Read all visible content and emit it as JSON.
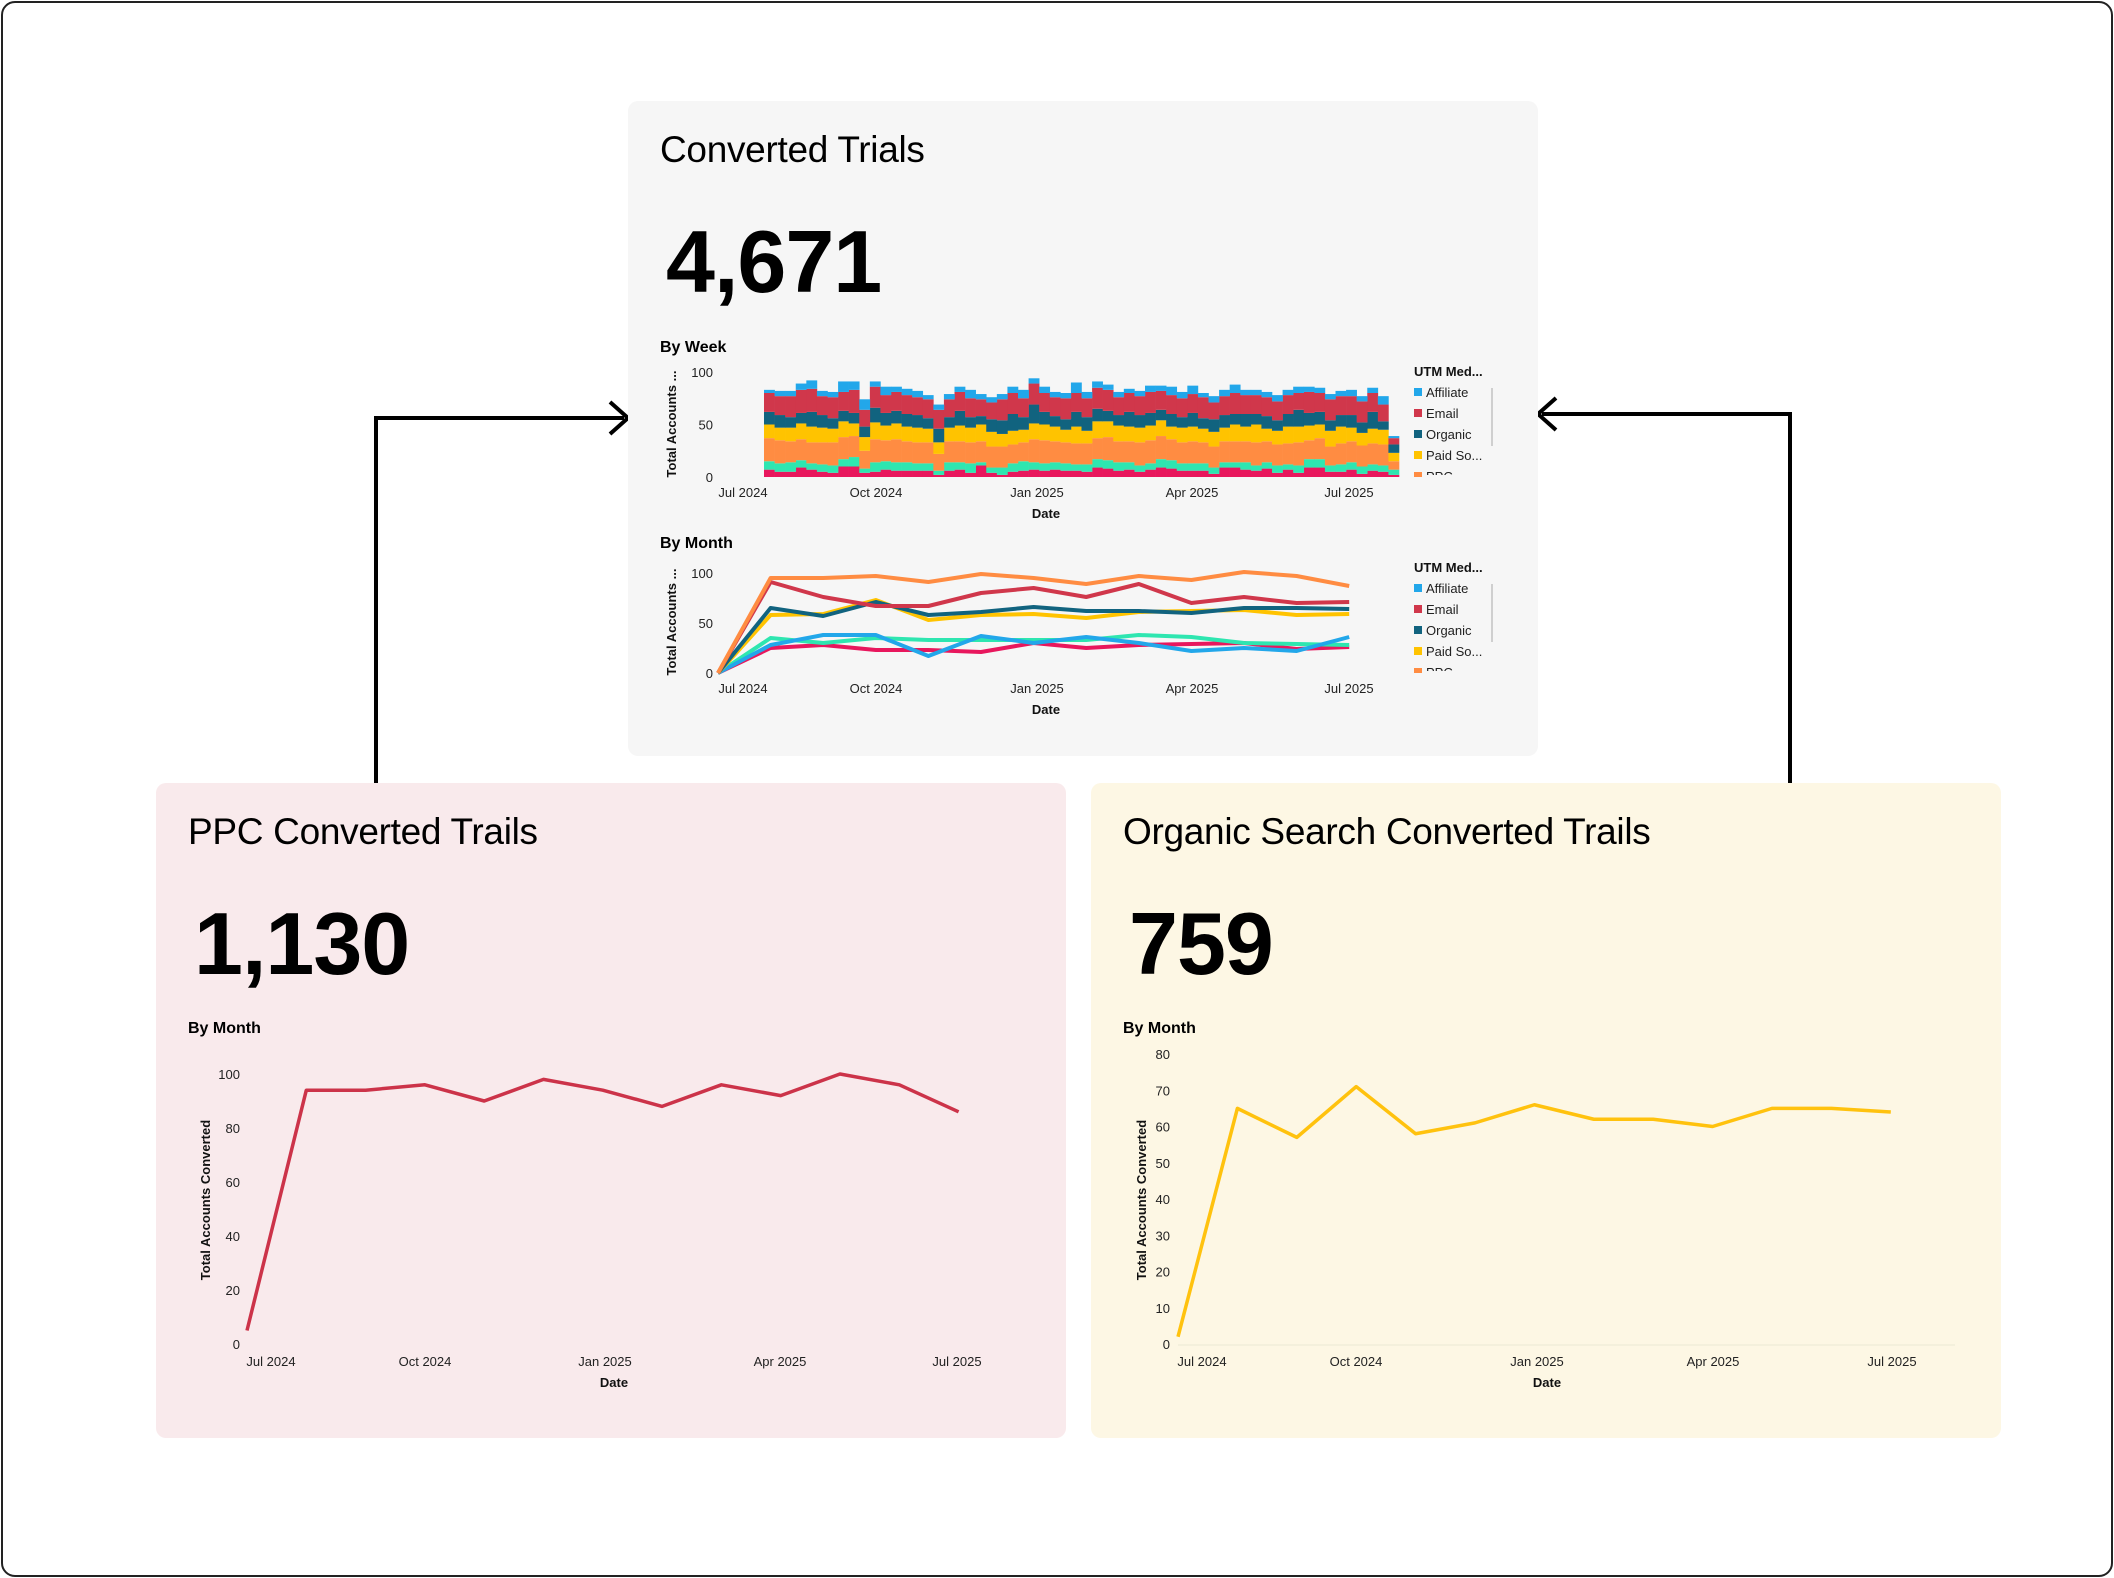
{
  "top_card": {
    "title": "Converted Trials",
    "value": "4,671",
    "weekly_label": "By Week",
    "monthly_label": "By Month"
  },
  "ppc_card": {
    "title": "PPC Converted Trails",
    "value": "1,130",
    "monthly_label": "By Month"
  },
  "organic_card": {
    "title": "Organic Search Converted Trails",
    "value": "759",
    "monthly_label": "By Month"
  },
  "chart_data": [
    {
      "id": "weekly",
      "type": "bar",
      "stacked": true,
      "xlabel": "Date",
      "ylabel": "Total Accounts ...",
      "ylim": [
        0,
        100
      ],
      "yticks": [
        "0",
        "50",
        "100"
      ],
      "xticks": [
        "Jul 2024",
        "Oct 2024",
        "Jan 2025",
        "Apr 2025",
        "Jul 2025"
      ],
      "legend_title": "UTM Med...",
      "legend": [
        "Affiliate",
        "Email",
        "Organic",
        "Paid So...",
        "PPC"
      ],
      "legend_position": "right",
      "series": [
        {
          "color": "#e8175d",
          "values": [
            7,
            5,
            5,
            9,
            7,
            5,
            4,
            10,
            10,
            4,
            5,
            7,
            6,
            6,
            6,
            6,
            2,
            6,
            7,
            4,
            11,
            4,
            2,
            5,
            6,
            7,
            6,
            7,
            6,
            6,
            5,
            9,
            8,
            6,
            7,
            5,
            7,
            9,
            8,
            6,
            6,
            6,
            3,
            9,
            9,
            7,
            6,
            8,
            4,
            7,
            4,
            9,
            9,
            5,
            5,
            7,
            3,
            6,
            5,
            2
          ]
        },
        {
          "color": "#2ee6b0",
          "values": [
            8,
            8,
            9,
            7,
            6,
            7,
            7,
            7,
            9,
            4,
            9,
            8,
            8,
            8,
            7,
            7,
            4,
            8,
            7,
            9,
            3,
            5,
            7,
            8,
            9,
            7,
            7,
            7,
            7,
            6,
            7,
            8,
            8,
            8,
            7,
            6,
            6,
            8,
            8,
            7,
            7,
            7,
            6,
            5,
            5,
            7,
            5,
            6,
            7,
            5,
            7,
            8,
            8,
            6,
            7,
            7,
            7,
            6,
            6,
            5
          ]
        },
        {
          "name": "PPC",
          "color": "#ff8c42",
          "values": [
            22,
            22,
            20,
            20,
            20,
            21,
            22,
            21,
            20,
            17,
            22,
            20,
            22,
            20,
            20,
            20,
            16,
            20,
            20,
            20,
            20,
            20,
            20,
            18,
            18,
            22,
            22,
            20,
            20,
            20,
            20,
            20,
            22,
            20,
            20,
            22,
            22,
            22,
            20,
            20,
            21,
            20,
            20,
            20,
            20,
            20,
            22,
            20,
            20,
            20,
            22,
            18,
            20,
            18,
            20,
            20,
            20,
            20,
            20,
            8
          ]
        },
        {
          "name": "Paid So...",
          "color": "#ffc300",
          "values": [
            13,
            12,
            13,
            15,
            15,
            14,
            13,
            15,
            12,
            13,
            16,
            14,
            15,
            14,
            14,
            13,
            11,
            13,
            15,
            14,
            16,
            14,
            12,
            13,
            12,
            15,
            15,
            14,
            12,
            16,
            12,
            16,
            15,
            15,
            14,
            14,
            14,
            15,
            12,
            14,
            14,
            13,
            14,
            13,
            16,
            14,
            17,
            12,
            13,
            16,
            15,
            14,
            13,
            15,
            16,
            13,
            12,
            14,
            14,
            8
          ]
        },
        {
          "name": "Organic",
          "color": "#11637f",
          "values": [
            12,
            12,
            10,
            10,
            14,
            12,
            10,
            10,
            10,
            10,
            14,
            12,
            12,
            12,
            12,
            10,
            13,
            10,
            14,
            10,
            8,
            12,
            13,
            16,
            12,
            18,
            12,
            10,
            10,
            14,
            13,
            12,
            10,
            10,
            14,
            12,
            12,
            10,
            12,
            10,
            13,
            10,
            12,
            12,
            10,
            12,
            10,
            12,
            10,
            12,
            16,
            12,
            12,
            10,
            11,
            12,
            10,
            16,
            8,
            8
          ]
        },
        {
          "name": "Email",
          "color": "#d0374b",
          "values": [
            18,
            18,
            20,
            22,
            22,
            18,
            20,
            18,
            22,
            16,
            20,
            17,
            18,
            18,
            17,
            18,
            18,
            17,
            18,
            18,
            16,
            16,
            20,
            20,
            18,
            20,
            18,
            18,
            20,
            18,
            18,
            20,
            20,
            17,
            18,
            18,
            20,
            18,
            18,
            18,
            18,
            20,
            16,
            18,
            20,
            18,
            18,
            18,
            18,
            18,
            16,
            20,
            18,
            20,
            18,
            18,
            20,
            18,
            16,
            6
          ]
        },
        {
          "name": "Affiliate",
          "color": "#22a7ea",
          "values": [
            3,
            5,
            5,
            6,
            8,
            5,
            5,
            10,
            8,
            10,
            5,
            8,
            5,
            6,
            6,
            4,
            5,
            5,
            5,
            8,
            5,
            5,
            5,
            6,
            8,
            5,
            6,
            5,
            5,
            10,
            6,
            6,
            5,
            5,
            4,
            5,
            6,
            5,
            8,
            6,
            8,
            4,
            6,
            6,
            8,
            5,
            5,
            5,
            6,
            5,
            6,
            5,
            5,
            5,
            5,
            6,
            5,
            5,
            8,
            2
          ]
        }
      ]
    },
    {
      "id": "monthly",
      "type": "line",
      "xlabel": "Date",
      "ylabel": "Total Accounts ...",
      "ylim": [
        0,
        100
      ],
      "yticks": [
        "0",
        "50",
        "100"
      ],
      "x": [
        "Jul 2024",
        "Aug 2024",
        "Sep 2024",
        "Oct 2024",
        "Nov 2024",
        "Dec 2024",
        "Jan 2025",
        "Feb 2025",
        "Mar 2025",
        "Apr 2025",
        "May 2025",
        "Jun 2025",
        "Jul 2025"
      ],
      "xticks": [
        "Jul 2024",
        "Oct 2024",
        "Jan 2025",
        "Apr 2025",
        "Jul 2025"
      ],
      "legend_title": "UTM Med...",
      "legend": [
        "Affiliate",
        "Email",
        "Organic",
        "Paid So...",
        "PPC"
      ],
      "legend_position": "right",
      "series": [
        {
          "color": "#e8175d",
          "values": [
            0,
            25,
            28,
            23,
            23,
            21,
            30,
            25,
            28,
            29,
            30,
            24,
            26
          ]
        },
        {
          "color": "#2ee6b0",
          "values": [
            0,
            35,
            30,
            35,
            33,
            33,
            33,
            33,
            38,
            36,
            30,
            29,
            28
          ]
        },
        {
          "name": "Affiliate",
          "color": "#22a7ea",
          "values": [
            0,
            28,
            38,
            38,
            17,
            37,
            30,
            36,
            30,
            22,
            25,
            22,
            36
          ]
        },
        {
          "name": "Paid So...",
          "color": "#ffc300",
          "values": [
            0,
            58,
            59,
            73,
            53,
            58,
            59,
            55,
            61,
            62,
            63,
            58,
            59
          ]
        },
        {
          "name": "Organic",
          "color": "#11637f",
          "values": [
            0,
            65,
            57,
            71,
            58,
            61,
            66,
            62,
            62,
            60,
            65,
            65,
            64
          ]
        },
        {
          "name": "Email",
          "color": "#d0374b",
          "values": [
            0,
            91,
            76,
            67,
            67,
            80,
            85,
            76,
            89,
            70,
            76,
            70,
            71
          ]
        },
        {
          "name": "PPC",
          "color": "#ff8c42",
          "values": [
            0,
            95,
            95,
            97,
            91,
            99,
            95,
            89,
            97,
            93,
            101,
            97,
            87
          ]
        }
      ]
    },
    {
      "id": "ppc",
      "type": "line",
      "xlabel": "Date",
      "ylabel": "Total Accounts Converted",
      "ylim": [
        0,
        100
      ],
      "yticks": [
        "0",
        "20",
        "40",
        "60",
        "80",
        "100"
      ],
      "x": [
        "Jul 2024",
        "Aug 2024",
        "Sep 2024",
        "Oct 2024",
        "Nov 2024",
        "Dec 2024",
        "Jan 2025",
        "Feb 2025",
        "Mar 2025",
        "Apr 2025",
        "May 2025",
        "Jun 2025",
        "Jul 2025"
      ],
      "xticks": [
        "Jul 2024",
        "Oct 2024",
        "Jan 2025",
        "Apr 2025",
        "Jul 2025"
      ],
      "series": [
        {
          "color": "#cc3349",
          "values": [
            5,
            94,
            94,
            96,
            90,
            98,
            94,
            88,
            96,
            92,
            100,
            96,
            86
          ]
        }
      ]
    },
    {
      "id": "organic",
      "type": "line",
      "xlabel": "Date",
      "ylabel": "Total Accounts Converted",
      "ylim": [
        0,
        80
      ],
      "yticks": [
        "0",
        "10",
        "20",
        "30",
        "40",
        "50",
        "60",
        "70",
        "80"
      ],
      "x": [
        "Jul 2024",
        "Aug 2024",
        "Sep 2024",
        "Oct 2024",
        "Nov 2024",
        "Dec 2024",
        "Jan 2025",
        "Feb 2025",
        "Mar 2025",
        "Apr 2025",
        "May 2025",
        "Jun 2025",
        "Jul 2025"
      ],
      "xticks": [
        "Jul 2024",
        "Oct 2024",
        "Jan 2025",
        "Apr 2025",
        "Jul 2025"
      ],
      "series": [
        {
          "color": "#ffc20e",
          "values": [
            2,
            65,
            57,
            71,
            58,
            61,
            66,
            62,
            62,
            60,
            65,
            65,
            64
          ]
        }
      ]
    }
  ]
}
